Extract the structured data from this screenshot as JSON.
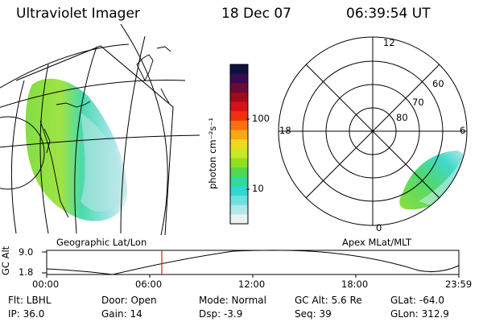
{
  "header": {
    "title": "Ultraviolet Imager",
    "date": "18 Dec 07",
    "time": "06:39:54 UT"
  },
  "colorbar": {
    "unit_label": "photon cm⁻²s⁻¹",
    "ticks": [
      "100",
      "10"
    ],
    "colors": [
      "#101040",
      "#3a0a50",
      "#6a0a3a",
      "#a00a1a",
      "#d8101a",
      "#f03010",
      "#f87010",
      "#f8a810",
      "#f0d820",
      "#c8e820",
      "#90e020",
      "#50d850",
      "#30d8a0",
      "#30d8d0",
      "#70e0e0",
      "#b0e8e8",
      "#e8f0f0"
    ]
  },
  "panels": {
    "left_caption": "Geographic Lat/Lon",
    "right_caption": "Apex MLat/MLT"
  },
  "polar": {
    "mlt_labels": {
      "top": "12",
      "left": "18",
      "right": "6",
      "bottom": "0"
    },
    "lat_labels": [
      "60",
      "70",
      "80"
    ]
  },
  "timeline": {
    "axis_label": "GC Alt",
    "y_max": "9.0",
    "y_min": "1.8",
    "x_ticks": [
      "00:00",
      "06:00",
      "12:00",
      "18:00",
      "23:59"
    ],
    "current_time_marker": "06:39:54"
  },
  "info": {
    "filter": "Flt: LBHL",
    "ip": "IP: 36.0",
    "door": "Door: Open",
    "gain": "Gain: 14",
    "mode": "Mode: Normal",
    "dsp": "Dsp:    -3.9",
    "gc_alt": "GC Alt: 5.6 Re",
    "seq": "Seq: 39",
    "glat": "GLat: -64.0",
    "glon": "GLon: 312.9"
  }
}
